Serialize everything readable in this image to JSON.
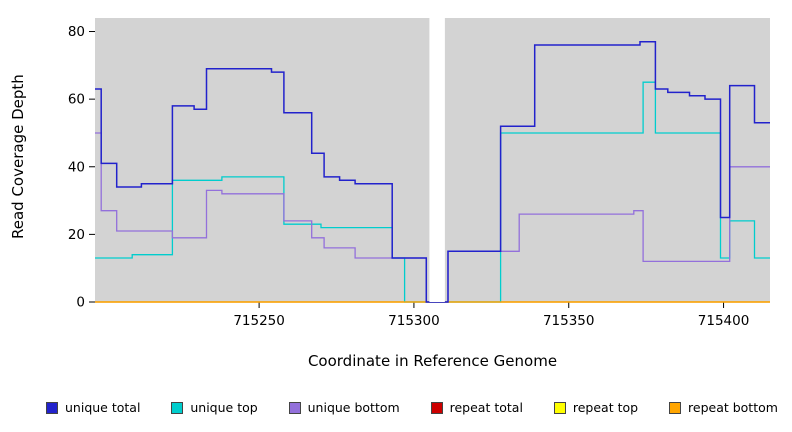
{
  "figure": {
    "xlabel": "Coordinate in Reference Genome",
    "ylabel": "Read Coverage Depth"
  },
  "chart_data": {
    "type": "line",
    "step": true,
    "title": "",
    "xlabel": "Coordinate in Reference Genome",
    "ylabel": "Read Coverage Depth",
    "xlim": [
      715197,
      715415
    ],
    "ylim": [
      0,
      84
    ],
    "xticks": [
      715250,
      715300,
      715350,
      715400
    ],
    "yticks": [
      0,
      20,
      40,
      60,
      80
    ],
    "grid": false,
    "panel_background": "#d3d3d3",
    "gap_region": {
      "x_start": 715305,
      "x_end": 715310
    },
    "legend_position": "bottom",
    "series": [
      {
        "name": "repeat total",
        "color": "#cc0000",
        "points": [
          [
            715197,
            0
          ]
        ]
      },
      {
        "name": "repeat top",
        "color": "#ffff00",
        "points": [
          [
            715197,
            0
          ]
        ]
      },
      {
        "name": "unique top",
        "color": "#00cdcd",
        "points": [
          [
            715197,
            13
          ],
          [
            715209,
            14
          ],
          [
            715222,
            36
          ],
          [
            715238,
            37
          ],
          [
            715258,
            23
          ],
          [
            715270,
            22
          ],
          [
            715293,
            13
          ],
          [
            715297,
            0
          ],
          [
            715328,
            50
          ],
          [
            715374,
            65
          ],
          [
            715378,
            50
          ],
          [
            715399,
            13
          ],
          [
            715402,
            24
          ],
          [
            715410,
            13
          ]
        ]
      },
      {
        "name": "repeat bottom",
        "color": "#ffa500",
        "points": [
          [
            715197,
            0
          ]
        ]
      },
      {
        "name": "unique bottom",
        "color": "#9370db",
        "points": [
          [
            715197,
            50
          ],
          [
            715199,
            27
          ],
          [
            715204,
            21
          ],
          [
            715222,
            19
          ],
          [
            715233,
            33
          ],
          [
            715238,
            32
          ],
          [
            715258,
            24
          ],
          [
            715267,
            19
          ],
          [
            715271,
            16
          ],
          [
            715281,
            13
          ],
          [
            715304,
            0
          ],
          [
            715311,
            15
          ],
          [
            715334,
            26
          ],
          [
            715371,
            27
          ],
          [
            715374,
            12
          ],
          [
            715402,
            40
          ]
        ]
      },
      {
        "name": "unique total",
        "color": "#2222cc",
        "points": [
          [
            715197,
            63
          ],
          [
            715199,
            41
          ],
          [
            715204,
            34
          ],
          [
            715212,
            35
          ],
          [
            715222,
            58
          ],
          [
            715229,
            57
          ],
          [
            715233,
            69
          ],
          [
            715254,
            68
          ],
          [
            715258,
            56
          ],
          [
            715267,
            44
          ],
          [
            715271,
            37
          ],
          [
            715276,
            36
          ],
          [
            715281,
            35
          ],
          [
            715293,
            13
          ],
          [
            715304,
            0
          ],
          [
            715311,
            15
          ],
          [
            715328,
            52
          ],
          [
            715339,
            76
          ],
          [
            715373,
            77
          ],
          [
            715378,
            63
          ],
          [
            715382,
            62
          ],
          [
            715389,
            61
          ],
          [
            715394,
            60
          ],
          [
            715399,
            25
          ],
          [
            715402,
            64
          ],
          [
            715410,
            53
          ]
        ]
      }
    ],
    "legend": [
      {
        "label": "unique total",
        "color": "#2222cc"
      },
      {
        "label": "unique top",
        "color": "#00cdcd"
      },
      {
        "label": "unique bottom",
        "color": "#9370db"
      },
      {
        "label": "repeat total",
        "color": "#cc0000"
      },
      {
        "label": "repeat top",
        "color": "#ffff00"
      },
      {
        "label": "repeat bottom",
        "color": "#ffa500"
      }
    ]
  }
}
